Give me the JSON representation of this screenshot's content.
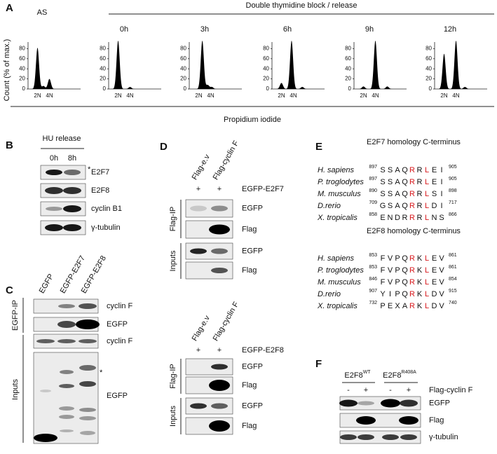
{
  "panels": {
    "A": {
      "label": "A",
      "group_title": "Double thymidine block / release",
      "y_label": "Count (% of max.)",
      "x_label": "Propidium iodide",
      "ylim": [
        0,
        100
      ],
      "yticks": [
        0,
        20,
        40,
        60,
        80
      ],
      "xtick_labels": [
        "2N",
        "4N"
      ],
      "histograms": [
        {
          "title": "AS",
          "peaks": [
            {
              "at": 2,
              "height": 82
            },
            {
              "at": 3,
              "height": 6
            },
            {
              "at": 4,
              "height": 20
            }
          ]
        },
        {
          "title": "0h",
          "peaks": [
            {
              "at": 2,
              "height": 96
            },
            {
              "at": 4,
              "height": 4
            }
          ]
        },
        {
          "title": "3h",
          "peaks": [
            {
              "at": 2.6,
              "height": 96
            },
            {
              "at": 3.5,
              "height": 8
            },
            {
              "at": 4.2,
              "height": 4
            }
          ]
        },
        {
          "title": "6h",
          "peaks": [
            {
              "at": 2,
              "height": 12
            },
            {
              "at": 3.7,
              "height": 96
            },
            {
              "at": 5.5,
              "height": 4
            }
          ]
        },
        {
          "title": "9h",
          "peaks": [
            {
              "at": 2,
              "height": 5
            },
            {
              "at": 4,
              "height": 96
            },
            {
              "at": 6,
              "height": 5
            }
          ]
        },
        {
          "title": "12h",
          "peaks": [
            {
              "at": 2,
              "height": 70
            },
            {
              "at": 4,
              "height": 96
            },
            {
              "at": 5.5,
              "height": 4
            }
          ]
        }
      ]
    },
    "B": {
      "label": "B",
      "treatment": "HU release",
      "columns": [
        "0h",
        "8h"
      ],
      "rows": [
        "E2F7",
        "E2F8",
        "cyclin B1",
        "γ-tubulin"
      ],
      "asterisk": "*"
    },
    "C": {
      "label": "C",
      "columns": [
        "EGFP",
        "EGFP-E2F7",
        "EGFP-E2F8"
      ],
      "groups": [
        "EGFP-IP",
        "Inputs"
      ],
      "rows": [
        "cyclin F",
        "EGFP",
        "cyclin F",
        "EGFP"
      ],
      "asterisk": "*"
    },
    "D": {
      "label": "D",
      "blots": [
        {
          "columns": [
            "Flag-e.v",
            "Flag-cyclin F"
          ],
          "signs": [
            "+",
            "+"
          ],
          "treatment": "EGFP-E2F7",
          "groups": [
            "Flag-IP",
            "Inputs"
          ],
          "rows": [
            "EGFP",
            "Flag",
            "EGFP",
            "Flag"
          ]
        },
        {
          "columns": [
            "Flag-e.v",
            "Flag-cyclin F"
          ],
          "signs": [
            "+",
            "+"
          ],
          "treatment": "EGFP-E2F8",
          "groups": [
            "Flag-IP",
            "Inputs"
          ],
          "rows": [
            "EGFP",
            "Flag",
            "EGFP",
            "Flag"
          ]
        }
      ]
    },
    "E": {
      "label": "E",
      "highlight_color": "#d7191c",
      "highlighted": [
        4,
        6
      ],
      "alignments": [
        {
          "title": "E2F7 homology C-terminus",
          "rows": [
            {
              "species": "H. sapiens",
              "start": 897,
              "sequence": [
                "S",
                "S",
                "A",
                "Q",
                "R",
                "R",
                "L",
                "E",
                "I"
              ],
              "end": 905
            },
            {
              "species": "P. troglodytes",
              "start": 897,
              "sequence": [
                "S",
                "S",
                "A",
                "Q",
                "R",
                "R",
                "L",
                "E",
                "I"
              ],
              "end": 905
            },
            {
              "species": "M. musculus",
              "start": 890,
              "sequence": [
                "S",
                "S",
                "A",
                "Q",
                "R",
                "R",
                "L",
                "S",
                "I"
              ],
              "end": 898
            },
            {
              "species": "D.rerio",
              "start": 709,
              "sequence": [
                "G",
                "S",
                "A",
                "Q",
                "R",
                "R",
                "L",
                "D",
                "I"
              ],
              "end": 717
            },
            {
              "species": "X. tropicalis",
              "start": 858,
              "sequence": [
                "E",
                "N",
                "D",
                "R",
                "R",
                "R",
                "L",
                "N",
                "S"
              ],
              "end": 866
            }
          ]
        },
        {
          "title": "E2F8 homology C-terminus",
          "rows": [
            {
              "species": "H. sapiens",
              "start": 853,
              "sequence": [
                "F",
                "V",
                "P",
                "Q",
                "R",
                "K",
                "L",
                "E",
                "V"
              ],
              "end": 861
            },
            {
              "species": "P. troglodytes",
              "start": 853,
              "sequence": [
                "F",
                "V",
                "P",
                "Q",
                "R",
                "K",
                "L",
                "E",
                "V"
              ],
              "end": 861
            },
            {
              "species": "M. musculus",
              "start": 846,
              "sequence": [
                "F",
                "V",
                "P",
                "Q",
                "R",
                "K",
                "L",
                "E",
                "V"
              ],
              "end": 854
            },
            {
              "species": "D.rerio",
              "start": 907,
              "sequence": [
                "Y",
                "I",
                "P",
                "Q",
                "R",
                "K",
                "L",
                "D",
                "V"
              ],
              "end": 915
            },
            {
              "species": "X. tropicalis",
              "start": 732,
              "sequence": [
                "P",
                "E",
                "X",
                "A",
                "R",
                "K",
                "L",
                "D",
                "V"
              ],
              "end": 740
            }
          ]
        }
      ]
    },
    "F": {
      "label": "F",
      "groups": [
        {
          "name": "E2F8",
          "superscript": "WT"
        },
        {
          "name": "E2F8",
          "superscript": "R408A"
        }
      ],
      "signs": [
        "-",
        "+",
        "-",
        "+"
      ],
      "treatment": "Flag-cyclin F",
      "rows": [
        "EGFP",
        "Flag",
        "γ-tubulin"
      ]
    }
  }
}
